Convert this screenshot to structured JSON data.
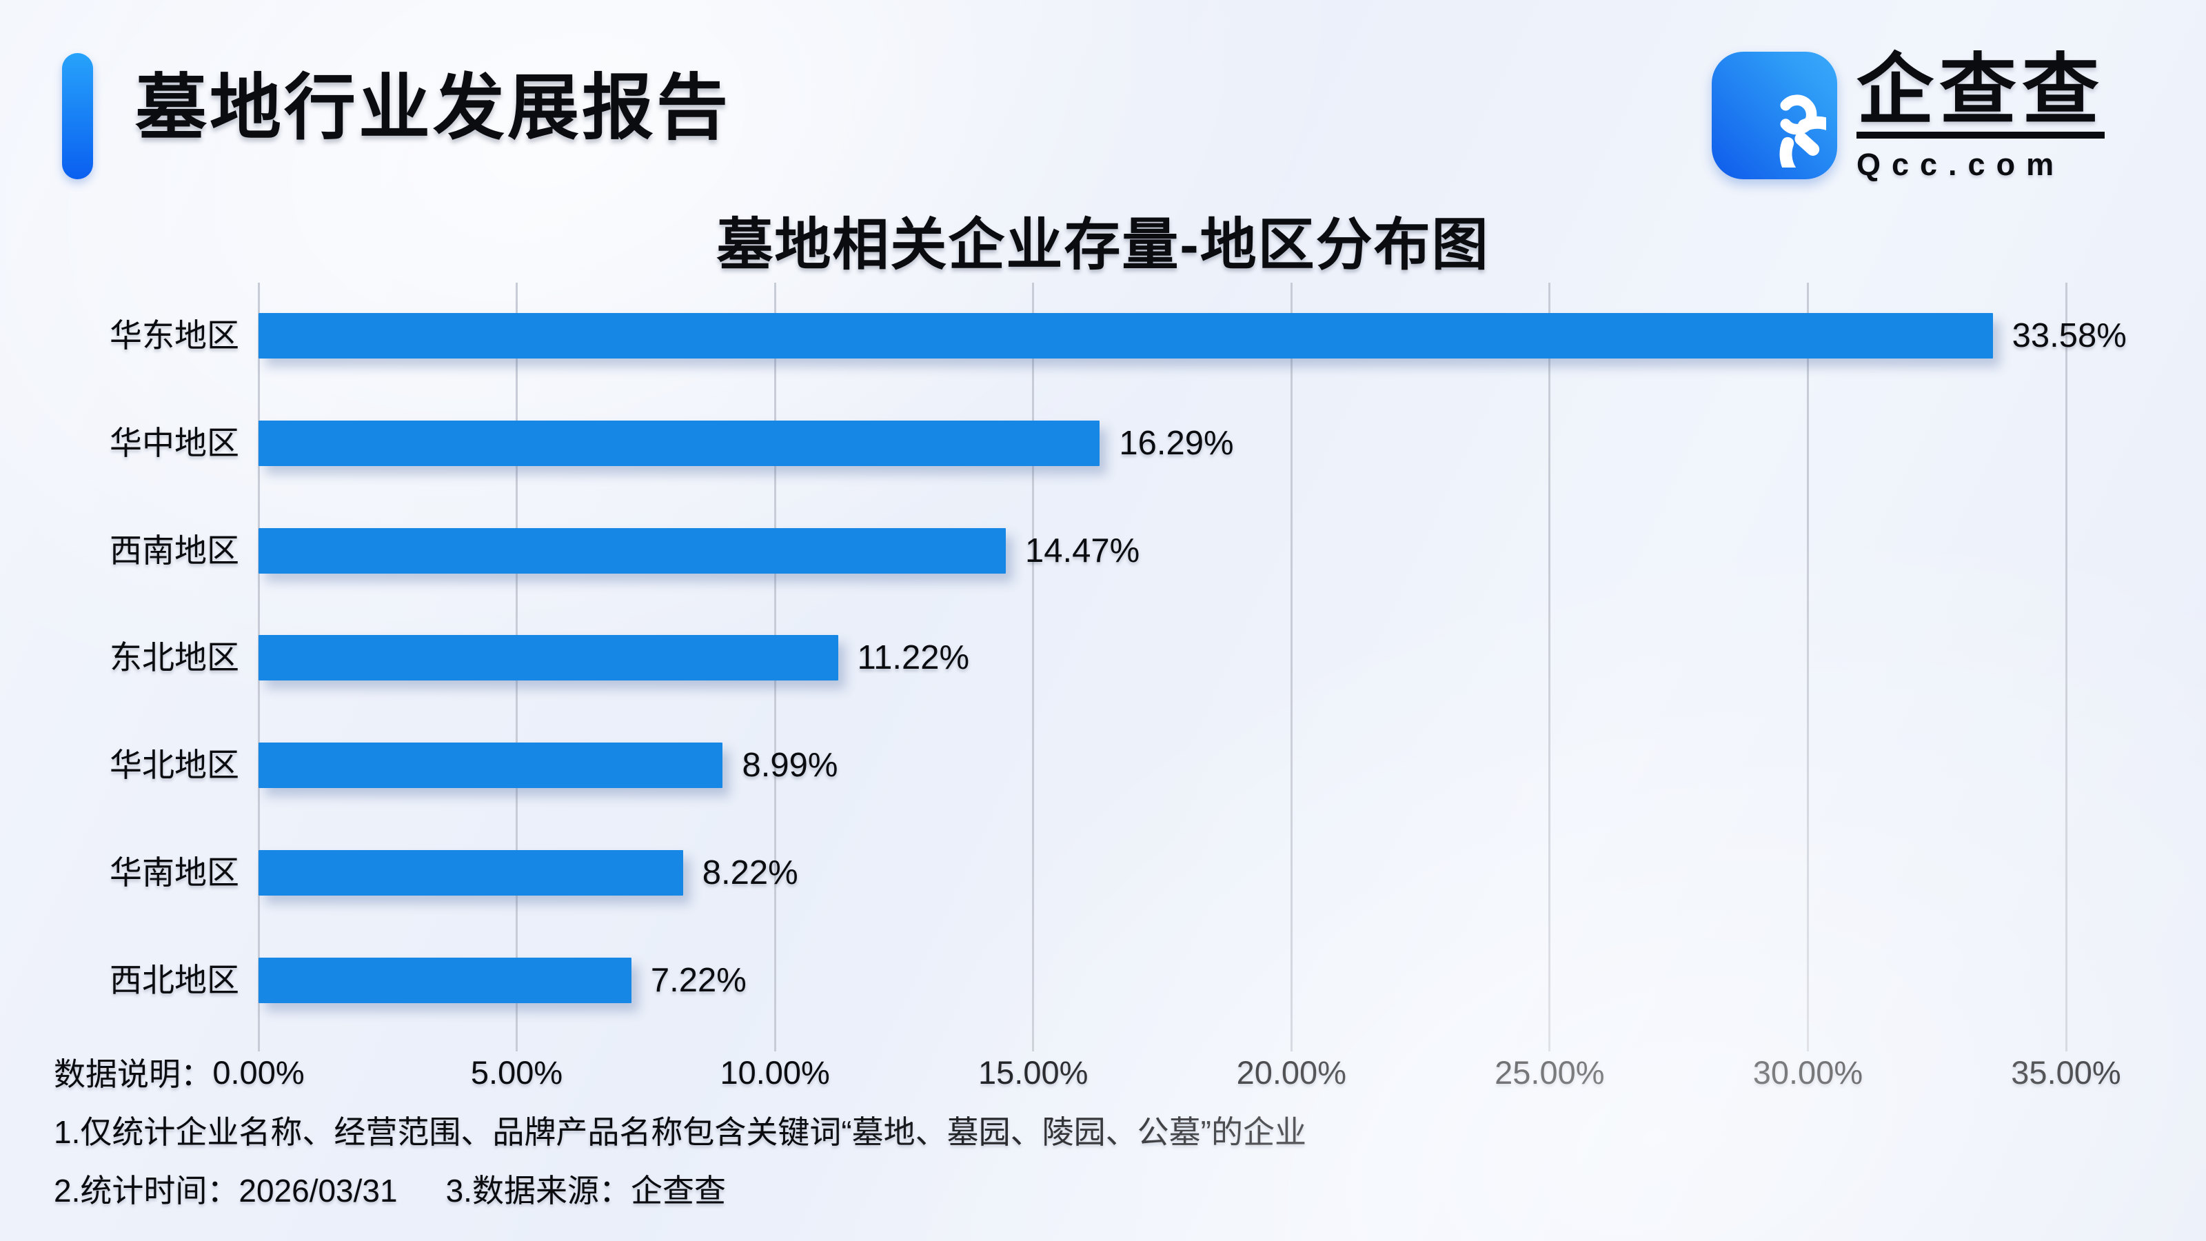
{
  "header": {
    "title": "墓地行业发展报告",
    "accent_color_top": "#27A3FB",
    "accent_color_bottom": "#0A5FF0"
  },
  "logo": {
    "brand_name": "企查查",
    "brand_domain": "Qcc.com",
    "icon_name": "qcc-magnifier-icon",
    "icon_gradient_start": "#0E5BEA",
    "icon_gradient_end": "#3AA9F9"
  },
  "chart_data": {
    "type": "bar",
    "orientation": "horizontal",
    "title": "墓地相关企业存量-地区分布图",
    "categories": [
      "华东地区",
      "华中地区",
      "西南地区",
      "东北地区",
      "华北地区",
      "华南地区",
      "西北地区"
    ],
    "values": [
      33.58,
      16.29,
      14.47,
      11.22,
      8.99,
      8.22,
      7.22
    ],
    "value_labels": [
      "33.58%",
      "16.29%",
      "14.47%",
      "11.22%",
      "8.99%",
      "8.22%",
      "7.22%"
    ],
    "x_ticks": [
      "0.00%",
      "5.00%",
      "10.00%",
      "15.00%",
      "20.00%",
      "25.00%",
      "30.00%",
      "35.00%"
    ],
    "xlim": [
      0,
      35
    ],
    "grid": true,
    "legend": false,
    "bar_color": "#1787E6",
    "gridline_color": "#C8CCD6"
  },
  "footnotes": {
    "label": "数据说明：",
    "line1": "1.仅统计企业名称、经营范围、品牌产品名称包含关键词“墓地、墓园、陵园、公墓”的企业",
    "line2_time": "2.统计时间：2026/03/31",
    "line2_source": "3.数据来源：企查查"
  }
}
